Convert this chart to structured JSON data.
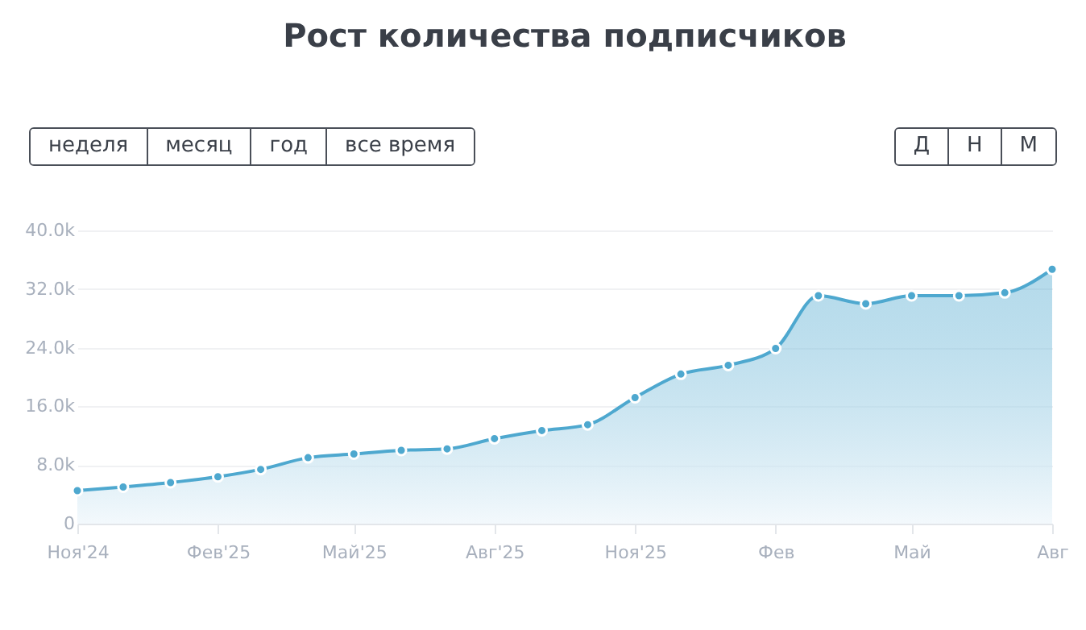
{
  "chart_data": {
    "type": "area",
    "title": "Рост количества подписчиков",
    "annotations": [
      "неделя",
      "месяц",
      "год",
      "все время",
      "Д",
      "Н",
      "М"
    ],
    "x": [
      "2024-11",
      "2024-12",
      "2025-01",
      "2025-02",
      "2025-03",
      "2025-04",
      "2025-05",
      "2025-06",
      "2025-07",
      "2025-08",
      "2025-09",
      "2025-10",
      "2025-11",
      "2025-12",
      "2026-01",
      "2026-02",
      "2026-03",
      "2026-04",
      "2026-05",
      "2026-06",
      "2026-07",
      "2026-08"
    ],
    "series": [
      {
        "color": "#4ea8cf",
        "values": [
          4500,
          5000,
          5600,
          6400,
          7400,
          9000,
          9500,
          10000,
          10200,
          11600,
          12700,
          13500,
          17200,
          20400,
          21600,
          23900,
          31100,
          30000,
          31100,
          31100,
          31500,
          34700
        ]
      }
    ],
    "xlim": [
      "2024-11",
      "2026-08"
    ],
    "xticks": [
      {
        "value": "2024-11",
        "label": "Ноя'24"
      },
      {
        "value": "2025-02",
        "label": "Фев'25"
      },
      {
        "value": "2025-05",
        "label": "Май'25"
      },
      {
        "value": "2025-08",
        "label": "Авг'25"
      },
      {
        "value": "2025-11",
        "label": "Ноя'25"
      },
      {
        "value": "2026-02",
        "label": "Фев"
      },
      {
        "value": "2026-05",
        "label": "Май"
      },
      {
        "value": "2026-08",
        "label": "Авг"
      }
    ],
    "ylim": [
      0,
      40000
    ],
    "yticks": [
      0,
      {
        "value": 8000,
        "label": "8.0k"
      },
      {
        "value": 16000,
        "label": "16.0k"
      },
      {
        "value": 24000,
        "label": "24.0k"
      },
      {
        "value": 32000,
        "label": "32.0k"
      },
      {
        "value": 40000,
        "label": "40.0k"
      }
    ],
    "grid": "y",
    "marker": "circle",
    "line_style": "solid"
  }
}
